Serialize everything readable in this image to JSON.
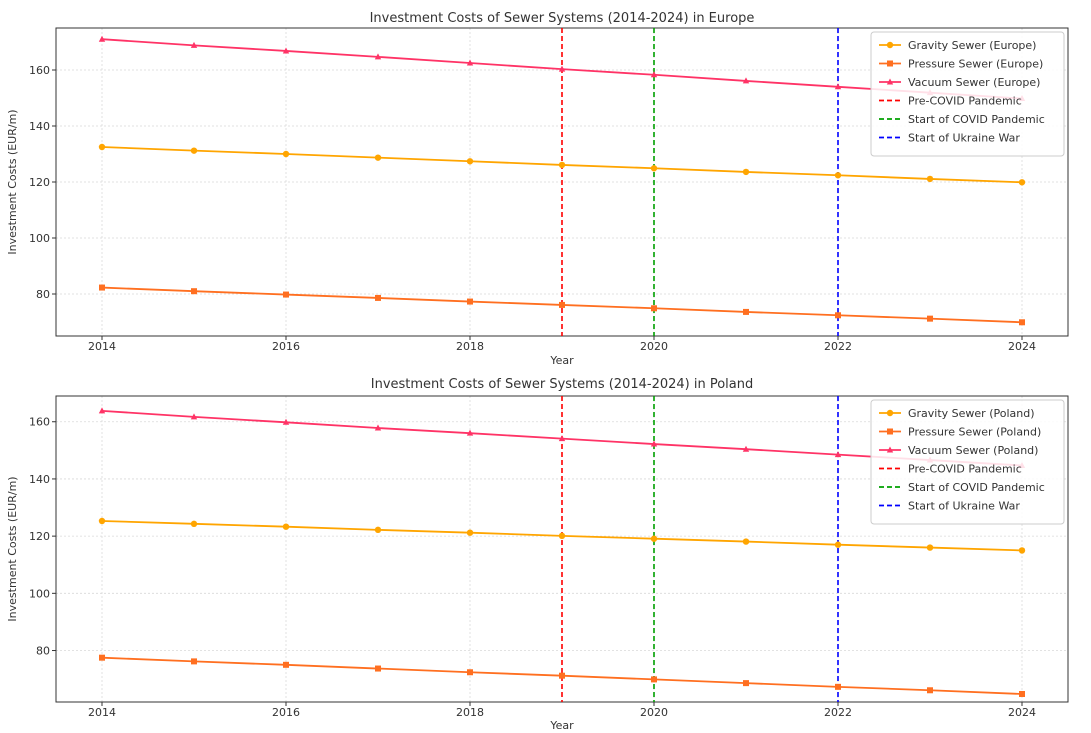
{
  "chart_data": [
    {
      "type": "line",
      "title": "Investment Costs of Sewer Systems (2014-2024) in Europe",
      "xlabel": "Year",
      "ylabel": "Investment Costs (EUR/m)",
      "x": [
        2014,
        2015,
        2016,
        2017,
        2018,
        2019,
        2020,
        2021,
        2022,
        2023,
        2024
      ],
      "xlim": [
        2013.5,
        2024.5
      ],
      "ylim": [
        65,
        175
      ],
      "xticks": [
        2014,
        2016,
        2018,
        2020,
        2022,
        2024
      ],
      "yticks": [
        80,
        100,
        120,
        140,
        160
      ],
      "grid": true,
      "legend_position": "top-right",
      "series": [
        {
          "name": "Gravity Sewer (Europe)",
          "color": "#FFA500",
          "marker": "circle",
          "values": [
            132.5,
            131.2,
            130.0,
            128.7,
            127.4,
            126.1,
            124.9,
            123.6,
            122.4,
            121.1,
            119.9
          ]
        },
        {
          "name": "Pressure Sewer (Europe)",
          "color": "#FF6F20",
          "marker": "square",
          "values": [
            82.3,
            81.0,
            79.8,
            78.6,
            77.3,
            76.1,
            74.9,
            73.6,
            72.4,
            71.2,
            69.9
          ]
        },
        {
          "name": "Vacuum Sewer (Europe)",
          "color": "#FF3366",
          "marker": "triangle",
          "values": [
            171.0,
            168.8,
            166.8,
            164.7,
            162.5,
            160.3,
            158.3,
            156.1,
            154.0,
            151.9,
            149.8
          ]
        }
      ],
      "vlines": [
        {
          "name": "Pre-COVID Pandemic",
          "x": 2019,
          "color": "#FF0000"
        },
        {
          "name": "Start of COVID Pandemic",
          "x": 2020,
          "color": "#00A000"
        },
        {
          "name": "Start of Ukraine War",
          "x": 2022,
          "color": "#0000FF"
        }
      ]
    },
    {
      "type": "line",
      "title": "Investment Costs of Sewer Systems (2014-2024) in Poland",
      "xlabel": "Year",
      "ylabel": "Investment Costs (EUR/m)",
      "x": [
        2014,
        2015,
        2016,
        2017,
        2018,
        2019,
        2020,
        2021,
        2022,
        2023,
        2024
      ],
      "xlim": [
        2013.5,
        2024.5
      ],
      "ylim": [
        62,
        169
      ],
      "xticks": [
        2014,
        2016,
        2018,
        2020,
        2022,
        2024
      ],
      "yticks": [
        80,
        100,
        120,
        140,
        160
      ],
      "grid": true,
      "legend_position": "top-right",
      "series": [
        {
          "name": "Gravity Sewer (Poland)",
          "color": "#FFA500",
          "marker": "circle",
          "values": [
            125.3,
            124.3,
            123.3,
            122.2,
            121.2,
            120.1,
            119.1,
            118.1,
            117.0,
            116.0,
            115.0
          ]
        },
        {
          "name": "Pressure Sewer (Poland)",
          "color": "#FF6F20",
          "marker": "square",
          "values": [
            77.5,
            76.2,
            75.0,
            73.7,
            72.4,
            71.2,
            69.9,
            68.6,
            67.3,
            66.1,
            64.8
          ]
        },
        {
          "name": "Vacuum Sewer (Poland)",
          "color": "#FF3366",
          "marker": "triangle",
          "values": [
            163.8,
            161.7,
            159.8,
            157.8,
            156.0,
            154.1,
            152.2,
            150.4,
            148.5,
            146.6,
            144.7
          ]
        }
      ],
      "vlines": [
        {
          "name": "Pre-COVID Pandemic",
          "x": 2019,
          "color": "#FF0000"
        },
        {
          "name": "Start of COVID Pandemic",
          "x": 2020,
          "color": "#00A000"
        },
        {
          "name": "Start of Ukraine War",
          "x": 2022,
          "color": "#0000FF"
        }
      ]
    }
  ]
}
